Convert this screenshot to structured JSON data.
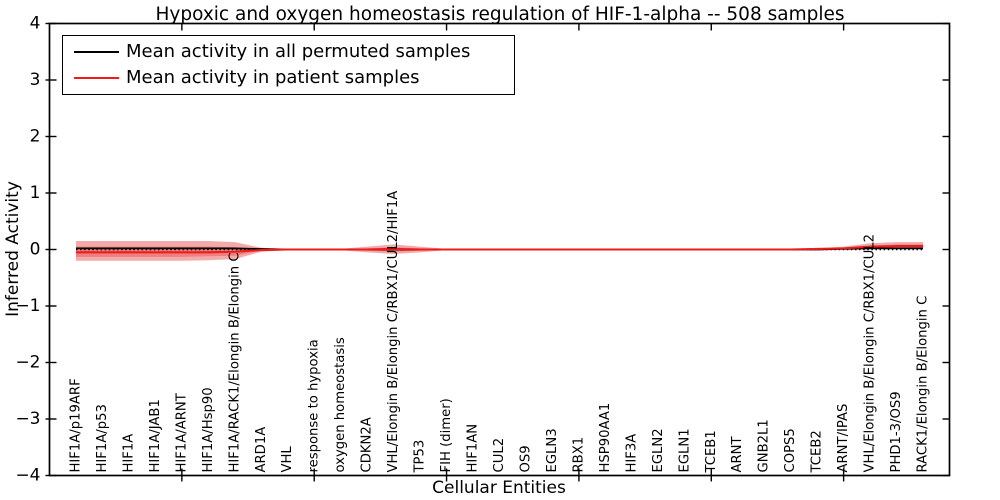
{
  "figure": {
    "title": "Hypoxic and oxygen homeostasis regulation of HIF-1-alpha -- 508 samples",
    "xlabel": "Cellular Entities",
    "ylabel": "Inferred Activity"
  },
  "legend": {
    "entries": [
      {
        "label": "Mean activity in all permuted samples",
        "color": "#000000"
      },
      {
        "label": "Mean activity in patient samples",
        "color": "#ef1a1a"
      }
    ]
  },
  "chart_data": {
    "type": "line",
    "title": "Hypoxic and oxygen homeostasis regulation of HIF-1-alpha -- 508 samples",
    "xlabel": "Cellular Entities",
    "ylabel": "Inferred Activity",
    "ylim": [
      -4,
      4
    ],
    "yticks": [
      -4,
      -3,
      -2,
      -1,
      0,
      1,
      2,
      3,
      4
    ],
    "xticks": [
      5,
      10,
      15,
      20,
      25,
      30
    ],
    "grid": false,
    "legend_position": "upper left",
    "categories": [
      "HIF1A/p19ARF",
      "HIF1A/p53",
      "HIF1A",
      "HIF1A/JAB1",
      "HIF1A/ARNT",
      "HIF1A/Hsp90",
      "HIF1A/RACK1/Elongin B/Elongin C",
      "ARD1A",
      "VHL",
      "response to hypoxia",
      "oxygen homeostasis",
      "CDKN2A",
      "VHL/Elongin B/Elongin C/RBX1/CUL2/HIF1A",
      "TP53",
      "FIH (dimer)",
      "HIF1AN",
      "CUL2",
      "OS9",
      "EGLN3",
      "RBX1",
      "HSP90AA1",
      "HIF3A",
      "EGLN2",
      "EGLN1",
      "TCEB1",
      "ARNT",
      "GNB2L1",
      "COPS5",
      "TCEB2",
      "ARNT/IPAS",
      "VHL/Elongin B/Elongin C/RBX1/CUL2",
      "PHD1-3/OS9",
      "RACK1/Elongin B/Elongin C"
    ],
    "series": [
      {
        "name": "Mean activity in all permuted samples",
        "color": "#000000",
        "values": [
          0.02,
          0.02,
          0.02,
          0.02,
          0.02,
          0.02,
          0.02,
          0.01,
          0,
          0,
          0,
          0,
          0,
          0,
          0,
          0,
          0,
          0,
          0,
          0,
          0,
          0,
          0,
          0,
          0,
          0,
          0,
          0,
          0,
          0.01,
          0.02,
          0.02,
          0.02
        ]
      },
      {
        "name": "Mean activity in patient samples",
        "color": "#ef1a1a",
        "values": [
          -0.05,
          -0.05,
          -0.05,
          -0.05,
          -0.05,
          -0.05,
          -0.04,
          -0.01,
          0,
          0,
          0,
          0,
          0.01,
          0,
          0,
          0,
          0,
          0,
          0,
          0,
          0,
          0,
          0,
          0,
          0,
          0,
          0,
          0,
          0.01,
          0.02,
          0.05,
          0.06,
          0.06
        ]
      }
    ],
    "bands": [
      {
        "name": "patient-std-outer",
        "color": "#e02020",
        "opacity": 0.38,
        "hi": [
          0.15,
          0.15,
          0.15,
          0.15,
          0.15,
          0.15,
          0.13,
          0.03,
          0.01,
          0.01,
          0.01,
          0.05,
          0.09,
          0.05,
          0.01,
          0.01,
          0.01,
          0.01,
          0.01,
          0.01,
          0.01,
          0.01,
          0.01,
          0.01,
          0.01,
          0.01,
          0.01,
          0.01,
          0.02,
          0.05,
          0.11,
          0.13,
          0.13
        ],
        "lo": [
          -0.2,
          -0.2,
          -0.2,
          -0.2,
          -0.2,
          -0.19,
          -0.17,
          -0.04,
          -0.01,
          -0.01,
          -0.01,
          -0.05,
          -0.08,
          -0.05,
          -0.01,
          -0.01,
          -0.01,
          -0.01,
          -0.01,
          -0.01,
          -0.01,
          -0.01,
          -0.01,
          -0.01,
          -0.01,
          -0.01,
          -0.01,
          -0.01,
          -0.01,
          0,
          0.01,
          0.02,
          0.02
        ]
      },
      {
        "name": "patient-std-inner",
        "color": "#e02020",
        "opacity": 0.3,
        "hi": [
          0.05,
          0.05,
          0.05,
          0.05,
          0.05,
          0.05,
          0.04,
          0.01,
          0,
          0,
          0,
          0.02,
          0.04,
          0.02,
          0,
          0,
          0,
          0,
          0,
          0,
          0,
          0,
          0,
          0,
          0,
          0,
          0,
          0,
          0.01,
          0.03,
          0.07,
          0.09,
          0.09
        ],
        "lo": [
          -0.13,
          -0.13,
          -0.13,
          -0.13,
          -0.13,
          -0.12,
          -0.11,
          -0.02,
          0,
          0,
          0,
          -0.02,
          -0.04,
          -0.02,
          0,
          0,
          0,
          0,
          0,
          0,
          0,
          0,
          0,
          0,
          0,
          0,
          0,
          0,
          0,
          0.01,
          0.03,
          0.04,
          0.04
        ]
      }
    ],
    "zero_line": {
      "y": 0,
      "style": "dotted",
      "color": "#000000"
    },
    "colors": {
      "axis": "#000000",
      "background": "#ffffff"
    }
  }
}
